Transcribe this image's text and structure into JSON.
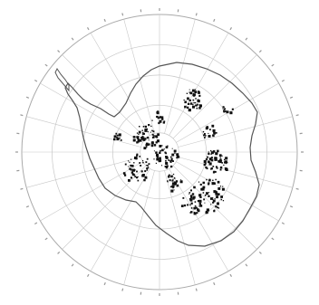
{
  "map": {
    "projection": "south-polar-stereographic",
    "graticule": {
      "meridian_step_deg": 15,
      "latitude_circles_deg": [
        -50,
        -60,
        -70,
        -80
      ]
    },
    "colors": {
      "background": "#ffffff",
      "grid": "#c8c8c8",
      "coast": "#555555",
      "marks": "#111111",
      "tick": "#999999"
    },
    "outline_glyph": "ⓘ"
  }
}
